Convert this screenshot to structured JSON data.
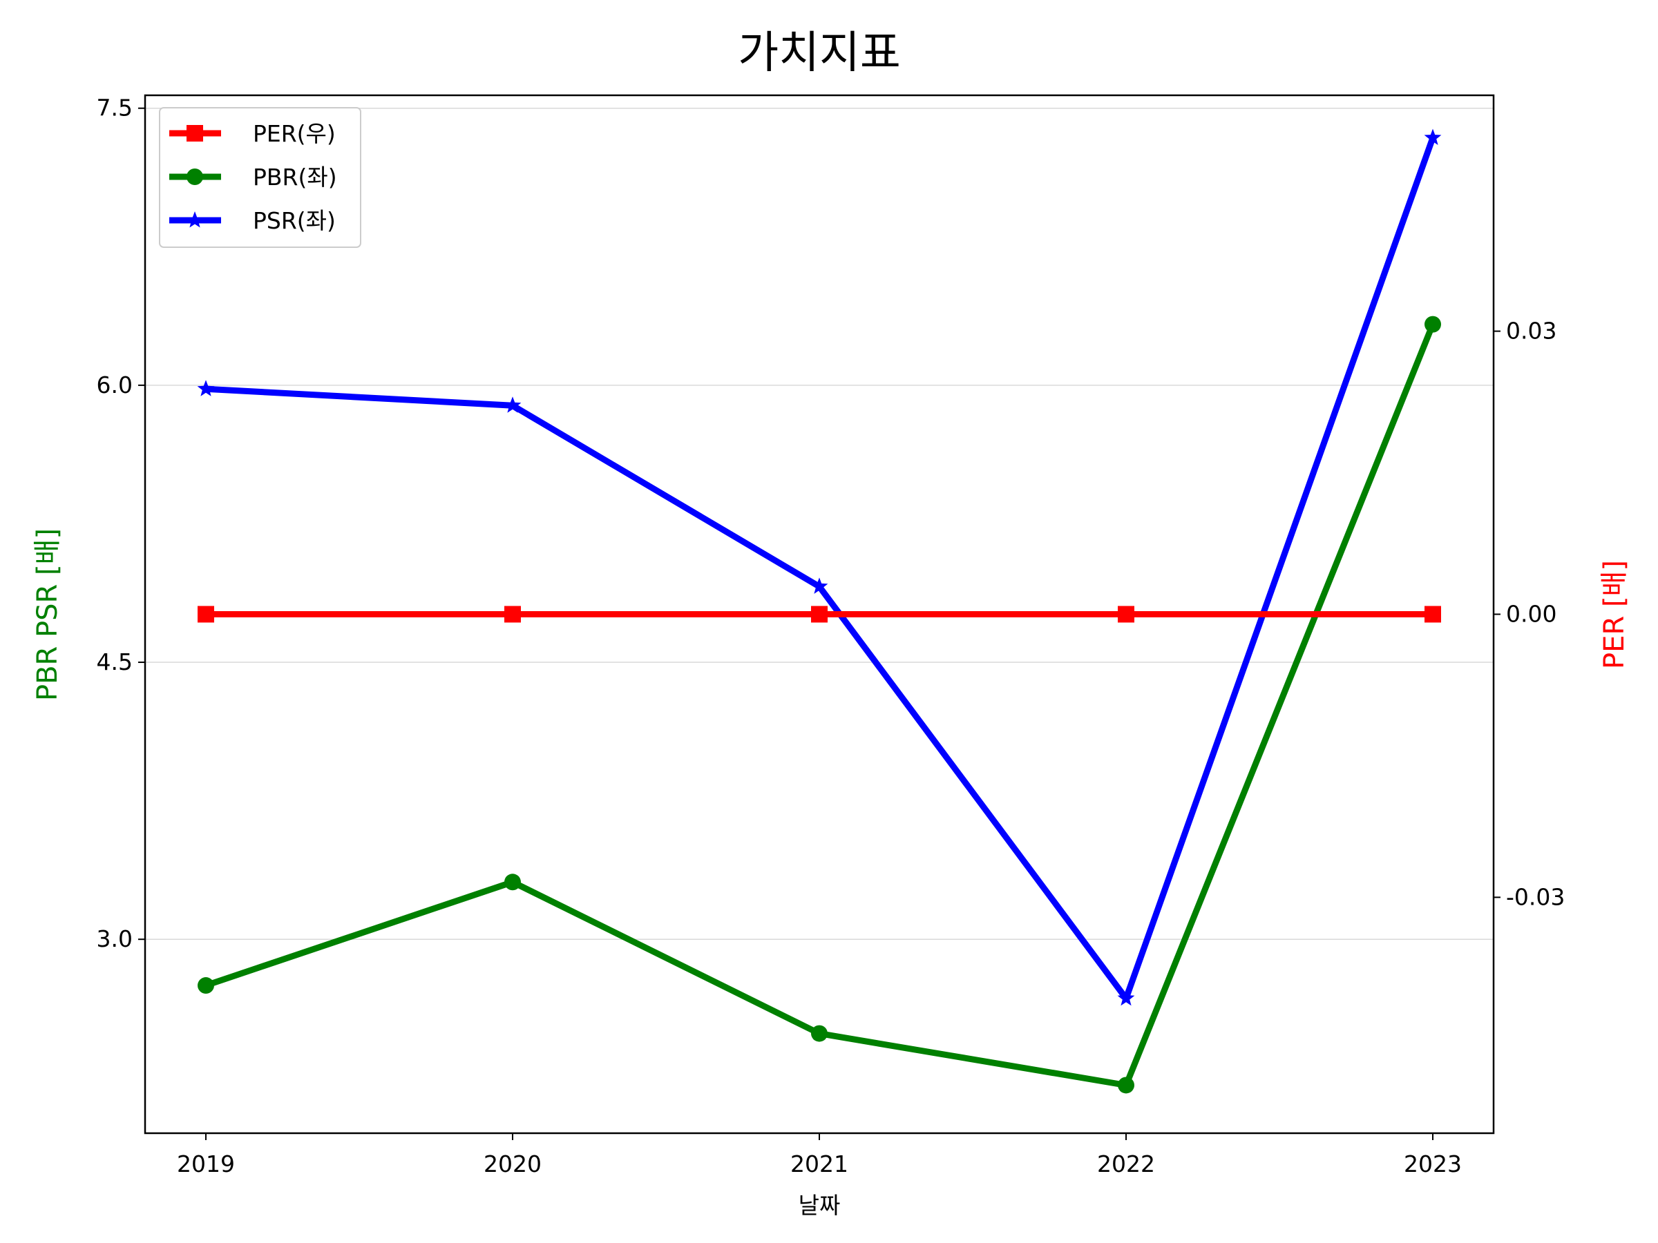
{
  "chart_data": {
    "type": "line",
    "title": "가치지표",
    "xlabel": "날짜",
    "ylabel_left": "PBR PSR [배]",
    "ylabel_right": "PER [배]",
    "ylabel_left_color": "#008000",
    "ylabel_right_color": "#ff0000",
    "categories": [
      "2019",
      "2020",
      "2021",
      "2022",
      "2023"
    ],
    "y_left": {
      "ticks": [
        3.0,
        4.5,
        6.0,
        7.5
      ],
      "tick_labels": [
        "3.0",
        "4.5",
        "6.0",
        "7.5"
      ],
      "ylim": [
        1.95,
        7.57
      ],
      "grid": true
    },
    "y_right": {
      "ticks": [
        -0.03,
        0.0,
        0.03
      ],
      "tick_labels": [
        "-0.03",
        "0.00",
        "0.03"
      ],
      "ylim": [
        -0.055,
        0.055
      ]
    },
    "legend_position": "top-left",
    "series": [
      {
        "name": "PER(우)",
        "axis": "right",
        "color": "#ff0000",
        "marker": "square",
        "values": [
          0,
          0,
          0,
          0,
          0
        ]
      },
      {
        "name": "PBR(좌)",
        "axis": "left",
        "color": "#008000",
        "marker": "circle",
        "values": [
          2.75,
          3.31,
          2.49,
          2.21,
          6.33
        ]
      },
      {
        "name": "PSR(좌)",
        "axis": "left",
        "color": "#0000ff",
        "marker": "star",
        "values": [
          5.98,
          5.89,
          4.91,
          2.68,
          7.34
        ]
      }
    ]
  }
}
